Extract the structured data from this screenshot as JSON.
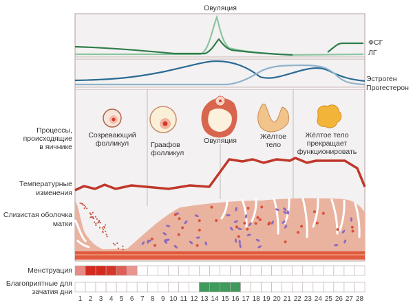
{
  "title": "Овуляция",
  "hormones": {
    "fsh": "ФСГ",
    "lh": "ЛГ",
    "estrogen": "Эстроген",
    "progesterone": "Прогестерон"
  },
  "left_labels": {
    "ovary": [
      "Процессы,",
      "происходящие",
      "в яичнике"
    ],
    "temperature": [
      "Температурные",
      "изменения"
    ],
    "endometrium": [
      "Слизистая оболочка",
      "матки"
    ],
    "menstruation": "Менструация",
    "fertile": [
      "Благоприятные для",
      "зачатия дни"
    ]
  },
  "stages": [
    {
      "lines": [
        "Созревающий",
        "фолликул"
      ]
    },
    {
      "lines": [
        "Граафов",
        "фолликул"
      ]
    },
    {
      "lines": [
        "Овуляция"
      ]
    },
    {
      "lines": [
        "Жёлтое",
        "тело"
      ]
    },
    {
      "lines": [
        "Жёлтое тело",
        "прекращает",
        "функционировать"
      ]
    }
  ],
  "days": [
    "1",
    "2",
    "3",
    "4",
    "5",
    "6",
    "7",
    "8",
    "9",
    "10",
    "11",
    "12",
    "13",
    "14",
    "15",
    "16",
    "17",
    "18",
    "19",
    "20",
    "21",
    "22",
    "23",
    "24",
    "25",
    "26",
    "27",
    "28"
  ],
  "menstruation_days": [
    1,
    2,
    3,
    4,
    5,
    6
  ],
  "fertile_days": [
    13,
    14,
    15,
    16
  ],
  "colors": {
    "fsh": "#2e7d4a",
    "lh": "#8cc4a0",
    "estrogen": "#2a6a94",
    "progesterone": "#8fb2cc",
    "temperature": "#c0372a",
    "menstruation": "#d42a1e",
    "fertile": "#3f9a5c",
    "tissue": "#e9b3a0"
  }
}
